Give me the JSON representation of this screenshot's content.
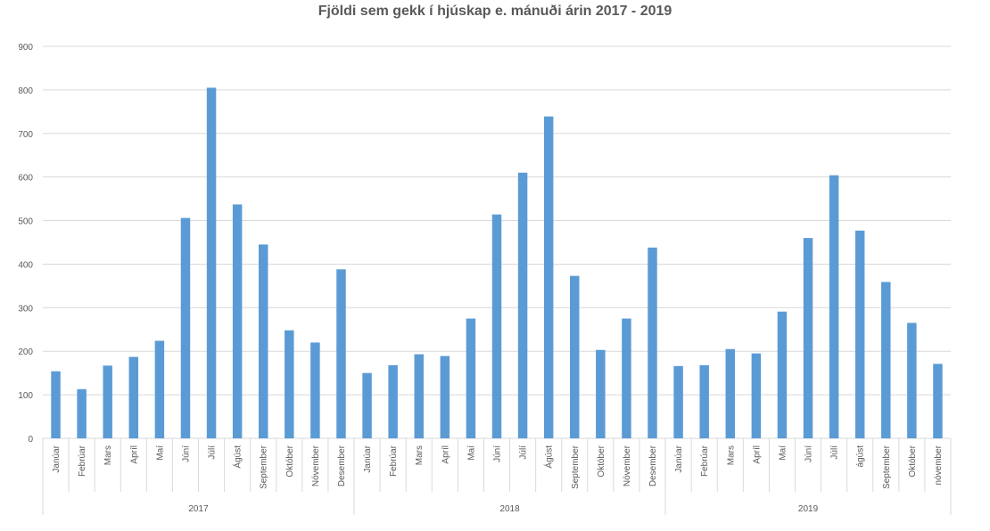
{
  "chart_data": {
    "type": "bar",
    "title": "Fjöldi sem gekk í hjúskap e. mánuði árin 2017 - 2019",
    "ylim": [
      0,
      900
    ],
    "yticks": [
      0,
      100,
      200,
      300,
      400,
      500,
      600,
      700,
      800,
      900
    ],
    "grid": true,
    "color": "#5B9BD5",
    "groups": [
      {
        "name": "2017",
        "categories": [
          "Janúar",
          "Febrúar",
          "Mars",
          "Apríl",
          "Maí",
          "Júní",
          "Júlí",
          "Ágúst",
          "September",
          "Október",
          "Nóvember",
          "Desember"
        ],
        "values": [
          154,
          113,
          167,
          187,
          224,
          506,
          805,
          537,
          445,
          248,
          220,
          388
        ]
      },
      {
        "name": "2018",
        "categories": [
          "Janúar",
          "Febrúar",
          "Mars",
          "Apríl",
          "Maí",
          "Júní",
          "Júlí",
          "Ágúst",
          "September",
          "Október",
          "Nóvember",
          "Desember"
        ],
        "values": [
          150,
          168,
          193,
          189,
          275,
          514,
          610,
          739,
          373,
          203,
          275,
          438
        ]
      },
      {
        "name": "2019",
        "categories": [
          "Janúar",
          "Febrúar",
          "Mars",
          "Apríl",
          "Maí",
          "Júní",
          "Júlí",
          "ágúst",
          "September",
          "Október",
          "nóvember"
        ],
        "values": [
          166,
          168,
          205,
          195,
          291,
          460,
          604,
          477,
          359,
          265,
          171
        ]
      }
    ]
  }
}
